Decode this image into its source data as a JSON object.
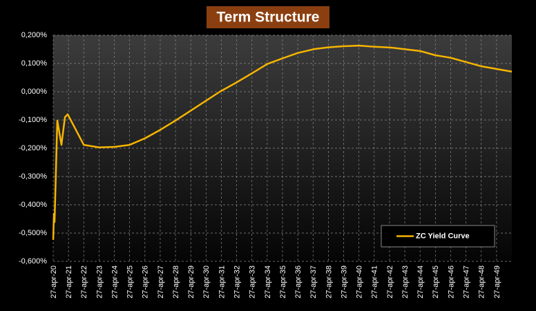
{
  "chart_data": {
    "type": "line",
    "title": "Term Structure",
    "x": [
      2020,
      2020.05,
      2020.09,
      2020.27,
      2020.54,
      2020.77,
      2020.95,
      2022,
      2023,
      2024,
      2025,
      2026,
      2027,
      2028,
      2029,
      2030.9,
      2032,
      2033,
      2034,
      2035,
      2036,
      2037.1,
      2038,
      2039,
      2040,
      2041,
      2042.1,
      2044,
      2045,
      2046,
      2047,
      2048,
      2050
    ],
    "series": [
      {
        "name": "ZC Yield Curve",
        "color": "#f7b500",
        "values": [
          -0.524,
          -0.432,
          -0.461,
          -0.102,
          -0.188,
          -0.09,
          -0.08,
          -0.188,
          -0.197,
          -0.195,
          -0.188,
          -0.165,
          -0.135,
          -0.102,
          -0.067,
          0.0,
          0.033,
          0.065,
          0.098,
          0.118,
          0.137,
          0.151,
          0.157,
          0.161,
          0.163,
          0.159,
          0.156,
          0.144,
          0.129,
          0.12,
          0.105,
          0.09,
          0.071
        ]
      }
    ],
    "xlim": [
      2020,
      2050
    ],
    "xticks": [
      {
        "value": 2020,
        "label": "27-apr-20"
      },
      {
        "value": 2021,
        "label": "27-apr-21"
      },
      {
        "value": 2022,
        "label": "27-apr-22"
      },
      {
        "value": 2023,
        "label": "27-apr-23"
      },
      {
        "value": 2024,
        "label": "27-apr-24"
      },
      {
        "value": 2025,
        "label": "27-apr-25"
      },
      {
        "value": 2026,
        "label": "27-apr-26"
      },
      {
        "value": 2027,
        "label": "27-apr-27"
      },
      {
        "value": 2028,
        "label": "27-apr-28"
      },
      {
        "value": 2029,
        "label": "27-apr-29"
      },
      {
        "value": 2030,
        "label": "27-apr-30"
      },
      {
        "value": 2031,
        "label": "27-apr-31"
      },
      {
        "value": 2032,
        "label": "27-apr-32"
      },
      {
        "value": 2033,
        "label": "27-apr-33"
      },
      {
        "value": 2034,
        "label": "27-apr-34"
      },
      {
        "value": 2035,
        "label": "27-apr-35"
      },
      {
        "value": 2036,
        "label": "27-apr-36"
      },
      {
        "value": 2037,
        "label": "27-apr-37"
      },
      {
        "value": 2038,
        "label": "27-apr-38"
      },
      {
        "value": 2039,
        "label": "27-apr-39"
      },
      {
        "value": 2040,
        "label": "27-apr-40"
      },
      {
        "value": 2041,
        "label": "27-apr-41"
      },
      {
        "value": 2042,
        "label": "27-apr-42"
      },
      {
        "value": 2043,
        "label": "27-apr-43"
      },
      {
        "value": 2044,
        "label": "27-apr-44"
      },
      {
        "value": 2045,
        "label": "27-apr-45"
      },
      {
        "value": 2046,
        "label": "27-apr-46"
      },
      {
        "value": 2047,
        "label": "27-apr-47"
      },
      {
        "value": 2048,
        "label": "27-apr-48"
      },
      {
        "value": 2049,
        "label": "27-apr-49"
      }
    ],
    "ylim": [
      -0.6,
      0.2
    ],
    "yticks": [
      {
        "value": -0.6,
        "label": "-0,600%"
      },
      {
        "value": -0.5,
        "label": "-0,500%"
      },
      {
        "value": -0.4,
        "label": "-0,400%"
      },
      {
        "value": -0.3,
        "label": "-0,300%"
      },
      {
        "value": -0.2,
        "label": "-0,200%"
      },
      {
        "value": -0.1,
        "label": "-0,100%"
      },
      {
        "value": 0,
        "label": "0,000%"
      },
      {
        "value": 0.1,
        "label": "0,100%"
      },
      {
        "value": 0.2,
        "label": "0,200%"
      }
    ],
    "grid": true,
    "legend": "lower right"
  }
}
